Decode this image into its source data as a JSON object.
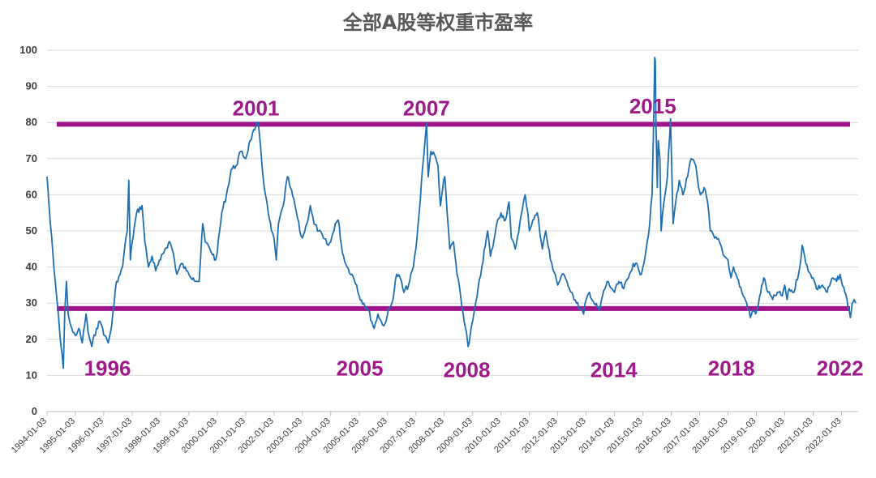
{
  "chart_data": {
    "type": "line",
    "title": "全部A股等权重市盈率",
    "ylim": [
      0,
      100
    ],
    "yticks": [
      0,
      10,
      20,
      30,
      40,
      50,
      60,
      70,
      80,
      90,
      100
    ],
    "xticks": [
      "1994-01-03",
      "1995-01-03",
      "1996-01-03",
      "1997-01-03",
      "1998-01-03",
      "1999-01-03",
      "2000-01-03",
      "2001-01-03",
      "2002-01-03",
      "2003-01-03",
      "2004-01-03",
      "2005-01-03",
      "2006-01-03",
      "2007-01-03",
      "2008-01-03",
      "2009-01-03",
      "2010-01-03",
      "2011-01-03",
      "2012-01-03",
      "2013-01-03",
      "2014-01-03",
      "2015-01-03",
      "2016-01-03",
      "2017-01-03",
      "2018-01-03",
      "2019-01-03",
      "2020-01-03",
      "2021-01-03",
      "2022-01-03"
    ],
    "grid": true,
    "series": [
      {
        "color": "#1f6fb5",
        "points": [
          [
            "1994-01-03",
            65
          ],
          [
            "1994-02-15",
            52
          ],
          [
            "1994-04-01",
            40
          ],
          [
            "1994-05-15",
            30
          ],
          [
            "1994-06-15",
            22
          ],
          [
            "1994-07-15",
            16
          ],
          [
            "1994-08-01",
            12
          ],
          [
            "1994-08-20",
            28
          ],
          [
            "1994-09-10",
            36
          ],
          [
            "1994-10-01",
            27
          ],
          [
            "1994-11-01",
            24
          ],
          [
            "1994-12-01",
            22
          ],
          [
            "1995-01-03",
            21
          ],
          [
            "1995-02-15",
            23
          ],
          [
            "1995-04-01",
            19
          ],
          [
            "1995-05-20",
            27
          ],
          [
            "1995-06-15",
            22
          ],
          [
            "1995-08-01",
            18
          ],
          [
            "1995-10-01",
            23
          ],
          [
            "1995-11-15",
            25
          ],
          [
            "1995-12-20",
            23
          ],
          [
            "1996-01-15",
            21
          ],
          [
            "1996-03-01",
            19
          ],
          [
            "1996-04-15",
            24
          ],
          [
            "1996-05-15",
            30
          ],
          [
            "1996-06-15",
            36
          ],
          [
            "1996-08-01",
            38
          ],
          [
            "1996-09-01",
            40
          ],
          [
            "1996-10-01",
            46
          ],
          [
            "1996-11-01",
            50
          ],
          [
            "1996-11-20",
            64
          ],
          [
            "1996-12-10",
            42
          ],
          [
            "1997-01-03",
            47
          ],
          [
            "1997-03-01",
            55
          ],
          [
            "1997-05-10",
            57
          ],
          [
            "1997-06-15",
            47
          ],
          [
            "1997-08-01",
            40
          ],
          [
            "1997-09-15",
            43
          ],
          [
            "1997-11-01",
            39
          ],
          [
            "1998-01-03",
            42
          ],
          [
            "1998-03-01",
            45
          ],
          [
            "1998-05-01",
            47
          ],
          [
            "1998-06-15",
            44
          ],
          [
            "1998-08-01",
            38
          ],
          [
            "1998-10-01",
            41
          ],
          [
            "1998-12-01",
            39
          ],
          [
            "1999-01-03",
            38
          ],
          [
            "1999-03-01",
            37
          ],
          [
            "1999-05-15",
            36
          ],
          [
            "1999-06-30",
            52
          ],
          [
            "1999-08-01",
            47
          ],
          [
            "1999-10-01",
            45
          ],
          [
            "1999-12-15",
            42
          ],
          [
            "2000-01-03",
            44
          ],
          [
            "2000-03-01",
            55
          ],
          [
            "2000-05-01",
            60
          ],
          [
            "2000-07-01",
            67
          ],
          [
            "2000-09-01",
            68
          ],
          [
            "2000-11-01",
            72
          ],
          [
            "2001-01-03",
            70
          ],
          [
            "2001-03-01",
            75
          ],
          [
            "2001-05-01",
            78
          ],
          [
            "2001-06-15",
            80
          ],
          [
            "2001-07-15",
            73
          ],
          [
            "2001-08-15",
            65
          ],
          [
            "2001-09-15",
            60
          ],
          [
            "2001-10-20",
            55
          ],
          [
            "2001-12-01",
            50
          ],
          [
            "2002-01-03",
            48
          ],
          [
            "2002-02-01",
            42
          ],
          [
            "2002-03-01",
            52
          ],
          [
            "2002-05-01",
            57
          ],
          [
            "2002-06-25",
            65
          ],
          [
            "2002-08-01",
            62
          ],
          [
            "2002-10-01",
            57
          ],
          [
            "2002-12-01",
            50
          ],
          [
            "2003-01-03",
            48
          ],
          [
            "2003-03-01",
            52
          ],
          [
            "2003-04-15",
            57
          ],
          [
            "2003-06-01",
            52
          ],
          [
            "2003-08-01",
            50
          ],
          [
            "2003-10-01",
            48
          ],
          [
            "2003-12-01",
            46
          ],
          [
            "2004-01-03",
            47
          ],
          [
            "2004-03-01",
            52
          ],
          [
            "2004-04-10",
            53
          ],
          [
            "2004-06-01",
            44
          ],
          [
            "2004-08-01",
            40
          ],
          [
            "2004-10-01",
            38
          ],
          [
            "2004-12-01",
            35
          ],
          [
            "2005-01-03",
            32
          ],
          [
            "2005-03-01",
            30
          ],
          [
            "2005-05-01",
            28
          ],
          [
            "2005-07-15",
            23
          ],
          [
            "2005-09-01",
            27
          ],
          [
            "2005-11-01",
            24
          ],
          [
            "2005-12-15",
            25
          ],
          [
            "2006-01-03",
            27
          ],
          [
            "2006-03-01",
            30
          ],
          [
            "2006-05-01",
            38
          ],
          [
            "2006-06-15",
            37
          ],
          [
            "2006-08-01",
            33
          ],
          [
            "2006-10-01",
            35
          ],
          [
            "2006-12-01",
            40
          ],
          [
            "2007-01-03",
            45
          ],
          [
            "2007-02-15",
            55
          ],
          [
            "2007-04-01",
            68
          ],
          [
            "2007-05-20",
            80
          ],
          [
            "2007-06-10",
            65
          ],
          [
            "2007-07-15",
            72
          ],
          [
            "2007-09-01",
            71
          ],
          [
            "2007-10-15",
            68
          ],
          [
            "2007-11-15",
            57
          ],
          [
            "2007-12-15",
            62
          ],
          [
            "2008-01-10",
            65
          ],
          [
            "2008-02-10",
            55
          ],
          [
            "2008-03-15",
            45
          ],
          [
            "2008-05-01",
            47
          ],
          [
            "2008-06-15",
            38
          ],
          [
            "2008-08-01",
            32
          ],
          [
            "2008-09-15",
            25
          ],
          [
            "2008-10-15",
            22
          ],
          [
            "2008-11-05",
            18
          ],
          [
            "2008-12-01",
            21
          ],
          [
            "2009-01-03",
            25
          ],
          [
            "2009-03-01",
            32
          ],
          [
            "2009-05-01",
            40
          ],
          [
            "2009-07-15",
            50
          ],
          [
            "2009-08-20",
            43
          ],
          [
            "2009-10-01",
            47
          ],
          [
            "2009-11-20",
            53
          ],
          [
            "2010-01-03",
            55
          ],
          [
            "2010-03-01",
            53
          ],
          [
            "2010-04-15",
            58
          ],
          [
            "2010-05-15",
            48
          ],
          [
            "2010-07-05",
            45
          ],
          [
            "2010-09-01",
            52
          ],
          [
            "2010-11-10",
            60
          ],
          [
            "2010-12-15",
            55
          ],
          [
            "2011-01-03",
            50
          ],
          [
            "2011-02-15",
            53
          ],
          [
            "2011-04-15",
            55
          ],
          [
            "2011-06-20",
            45
          ],
          [
            "2011-08-01",
            50
          ],
          [
            "2011-10-01",
            42
          ],
          [
            "2011-12-01",
            38
          ],
          [
            "2012-01-03",
            35
          ],
          [
            "2012-03-01",
            38
          ],
          [
            "2012-05-01",
            36
          ],
          [
            "2012-07-01",
            33
          ],
          [
            "2012-09-01",
            30
          ],
          [
            "2012-12-01",
            27
          ],
          [
            "2013-01-03",
            31
          ],
          [
            "2013-02-15",
            33
          ],
          [
            "2013-04-15",
            30
          ],
          [
            "2013-06-25",
            28
          ],
          [
            "2013-08-01",
            32
          ],
          [
            "2013-10-01",
            36
          ],
          [
            "2013-12-01",
            34
          ],
          [
            "2014-01-03",
            33
          ],
          [
            "2014-03-01",
            36
          ],
          [
            "2014-05-01",
            34
          ],
          [
            "2014-07-01",
            37
          ],
          [
            "2014-09-01",
            41
          ],
          [
            "2014-11-01",
            40
          ],
          [
            "2014-12-15",
            38
          ],
          [
            "2015-01-03",
            40
          ],
          [
            "2015-02-15",
            45
          ],
          [
            "2015-04-01",
            52
          ],
          [
            "2015-05-01",
            60
          ],
          [
            "2015-05-20",
            78
          ],
          [
            "2015-06-05",
            98
          ],
          [
            "2015-06-12",
            97
          ],
          [
            "2015-06-20",
            80
          ],
          [
            "2015-07-08",
            62
          ],
          [
            "2015-07-20",
            75
          ],
          [
            "2015-08-10",
            70
          ],
          [
            "2015-08-26",
            50
          ],
          [
            "2015-09-15",
            55
          ],
          [
            "2015-10-15",
            60
          ],
          [
            "2015-11-15",
            65
          ],
          [
            "2015-12-25",
            81
          ],
          [
            "2016-01-10",
            67
          ],
          [
            "2016-01-28",
            52
          ],
          [
            "2016-03-01",
            58
          ],
          [
            "2016-04-15",
            64
          ],
          [
            "2016-06-01",
            60
          ],
          [
            "2016-08-01",
            65
          ],
          [
            "2016-09-15",
            70
          ],
          [
            "2016-11-15",
            68
          ],
          [
            "2016-12-20",
            62
          ],
          [
            "2017-01-15",
            60
          ],
          [
            "2017-03-01",
            62
          ],
          [
            "2017-04-15",
            58
          ],
          [
            "2017-05-20",
            50
          ],
          [
            "2017-07-15",
            48
          ],
          [
            "2017-09-15",
            47
          ],
          [
            "2017-11-15",
            43
          ],
          [
            "2018-01-03",
            42
          ],
          [
            "2018-02-10",
            37
          ],
          [
            "2018-03-15",
            40
          ],
          [
            "2018-05-01",
            37
          ],
          [
            "2018-07-01",
            33
          ],
          [
            "2018-09-01",
            30
          ],
          [
            "2018-10-18",
            26
          ],
          [
            "2018-11-15",
            28
          ],
          [
            "2018-12-25",
            27
          ],
          [
            "2019-01-10",
            28
          ],
          [
            "2019-02-15",
            32
          ],
          [
            "2019-04-08",
            37
          ],
          [
            "2019-06-01",
            33
          ],
          [
            "2019-08-01",
            31
          ],
          [
            "2019-10-01",
            33
          ],
          [
            "2019-12-01",
            32
          ],
          [
            "2020-01-03",
            35
          ],
          [
            "2020-02-03",
            31
          ],
          [
            "2020-03-01",
            34
          ],
          [
            "2020-05-01",
            33
          ],
          [
            "2020-07-15",
            40
          ],
          [
            "2020-08-15",
            46
          ],
          [
            "2020-10-01",
            41
          ],
          [
            "2020-12-01",
            38
          ],
          [
            "2021-01-03",
            37
          ],
          [
            "2021-02-15",
            34
          ],
          [
            "2021-05-01",
            35
          ],
          [
            "2021-07-01",
            33
          ],
          [
            "2021-09-15",
            37
          ],
          [
            "2021-11-01",
            36
          ],
          [
            "2021-12-15",
            38
          ],
          [
            "2022-01-03",
            36
          ],
          [
            "2022-02-15",
            33
          ],
          [
            "2022-03-15",
            31
          ],
          [
            "2022-04-27",
            26
          ],
          [
            "2022-05-20",
            30
          ],
          [
            "2022-06-15",
            31
          ],
          [
            "2022-07-05",
            30
          ]
        ]
      }
    ],
    "reference_lines": [
      {
        "y": 79.5,
        "color": "#a0148a"
      },
      {
        "y": 28.5,
        "color": "#a0148a"
      }
    ],
    "annotations": [
      {
        "text": "2001",
        "date": "2001-05-15",
        "y": 84
      },
      {
        "text": "2007",
        "date": "2007-05-20",
        "y": 84
      },
      {
        "text": "2015",
        "date": "2015-05-10",
        "y": 84.5
      },
      {
        "text": "1996",
        "date": "1996-02-20",
        "y": 12
      },
      {
        "text": "2005",
        "date": "2005-01-10",
        "y": 12
      },
      {
        "text": "2008",
        "date": "2008-10-20",
        "y": 11.5
      },
      {
        "text": "2014",
        "date": "2013-12-25",
        "y": 11.5
      },
      {
        "text": "2018",
        "date": "2018-02-15",
        "y": 12
      },
      {
        "text": "2022",
        "date": "2021-12-15",
        "y": 12
      }
    ]
  }
}
